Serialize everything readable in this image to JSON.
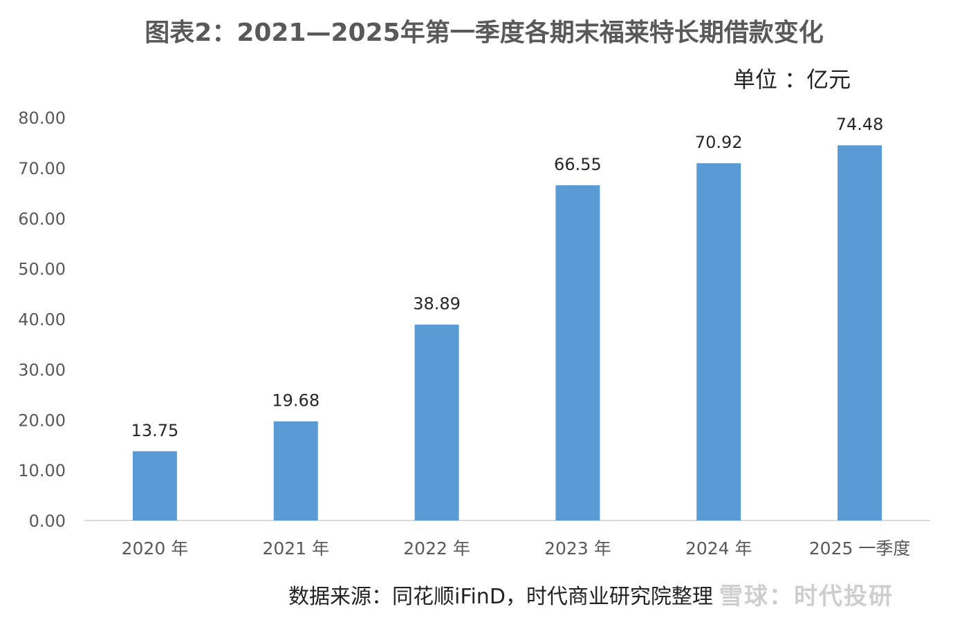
{
  "chart_data": {
    "type": "bar",
    "title": "图表2：2021—2025年第一季度各期末福莱特长期借款变化",
    "unit_label": "单位 ：亿元",
    "categories": [
      "2020 年",
      "2021 年",
      "2022 年",
      "2023 年",
      "2024 年",
      "2025 一季度"
    ],
    "values": [
      13.75,
      19.68,
      38.89,
      66.55,
      70.92,
      74.48
    ],
    "value_labels": [
      "13.75",
      "19.68",
      "38.89",
      "66.55",
      "70.92",
      "74.48"
    ],
    "ylim": [
      0,
      80
    ],
    "yticks": [
      "0.00",
      "10.00",
      "20.00",
      "30.00",
      "40.00",
      "50.00",
      "60.00",
      "70.00",
      "80.00"
    ],
    "grid": false,
    "bar_color": "#5b9bd5",
    "source": "数据来源：同花顺iFinD，时代商业研究院整理"
  },
  "watermark": "雪球：时代投研"
}
